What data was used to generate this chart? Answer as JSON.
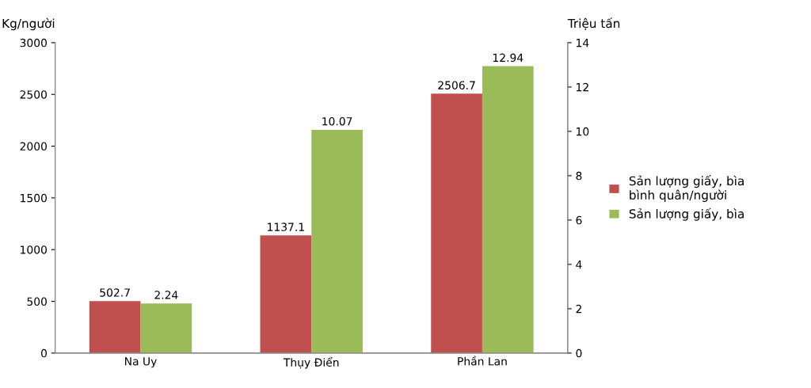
{
  "chart_data": {
    "type": "bar",
    "categories": [
      "Na Uy",
      "Thụy Điển",
      "Phần Lan"
    ],
    "series": [
      {
        "name": "Sản lượng giấy, bìa\nbình quân/người",
        "color": "#c0504d",
        "values": [
          502.7,
          1137.1,
          2506.7
        ]
      },
      {
        "name": "Sản lượng giấy, bìa",
        "color": "#9bbb59",
        "values": [
          2.24,
          10.07,
          12.94
        ],
        "axis": "y2"
      }
    ],
    "ylabel": "Kg/người",
    "y2label": "Triệu tấn",
    "ylim": [
      0,
      3000
    ],
    "yticks": [
      0,
      500,
      1000,
      1500,
      2000,
      2500,
      3000
    ],
    "y2lim": [
      0,
      14
    ],
    "y2ticks": [
      0,
      2,
      4,
      6,
      8,
      10,
      12,
      14
    ],
    "data_labels": true,
    "legend": "right",
    "grid": false
  }
}
